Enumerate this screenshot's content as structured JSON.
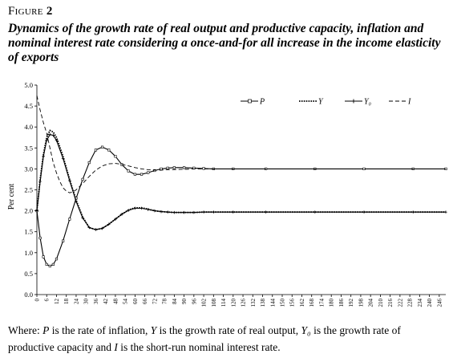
{
  "figure": {
    "label_prefix": "Figure",
    "label_number": "2",
    "title": "Dynamics of the growth rate of real output and productive capacity, inflation and nominal interest rate considering a once-and-for all increase in the income elasticity of exports"
  },
  "caption": {
    "parts": [
      {
        "text": "Where: ",
        "italic": false
      },
      {
        "text": "P",
        "italic": true
      },
      {
        "text": " is the rate of inflation, ",
        "italic": false
      },
      {
        "text": "Y",
        "italic": true
      },
      {
        "text": " is the growth rate of real output, ",
        "italic": false
      },
      {
        "text": "Y₀",
        "italic": true
      },
      {
        "text": " is the growth rate of productive capacity and ",
        "italic": false
      },
      {
        "text": "I",
        "italic": true
      },
      {
        "text": " is the short-run nominal interest rate.",
        "italic": false
      }
    ]
  },
  "chart_data": {
    "type": "line",
    "title": "",
    "xlabel": "",
    "ylabel": "Per cent",
    "xlim": [
      0,
      250
    ],
    "ylim": [
      0,
      5
    ],
    "yticks": [
      "0.0",
      "0.5",
      "1.0",
      "1.5",
      "2.0",
      "2.5",
      "3.0",
      "3.5",
      "4.0",
      "4.5",
      "5.0"
    ],
    "xticks": [
      0,
      6,
      12,
      18,
      24,
      30,
      36,
      42,
      48,
      54,
      60,
      66,
      72,
      78,
      84,
      90,
      96,
      102,
      108,
      114,
      120,
      126,
      132,
      138,
      144,
      150,
      156,
      162,
      168,
      174,
      180,
      186,
      192,
      198,
      204,
      210,
      216,
      222,
      228,
      234,
      240,
      246
    ],
    "grid": false,
    "legend_position": "top-right",
    "series": [
      {
        "name": "P",
        "style": "solid-square-markers",
        "x": [
          0,
          2,
          4,
          6,
          8,
          10,
          12,
          16,
          20,
          24,
          28,
          32,
          36,
          40,
          44,
          48,
          52,
          56,
          60,
          64,
          68,
          72,
          76,
          80,
          84,
          90,
          96,
          102,
          108,
          120,
          140,
          170,
          200,
          230,
          250
        ],
        "values": [
          2.0,
          1.35,
          0.9,
          0.72,
          0.68,
          0.72,
          0.85,
          1.28,
          1.8,
          2.3,
          2.75,
          3.15,
          3.45,
          3.52,
          3.45,
          3.3,
          3.1,
          2.95,
          2.87,
          2.87,
          2.91,
          2.96,
          3.0,
          3.02,
          3.03,
          3.03,
          3.02,
          3.01,
          3.0,
          3.0,
          3.0,
          3.0,
          3.0,
          3.0,
          3.0
        ]
      },
      {
        "name": "Y",
        "style": "dotted",
        "x": [
          0,
          2,
          4,
          6,
          8,
          10,
          12,
          16,
          20,
          24,
          28,
          32,
          36,
          40,
          44,
          48,
          52,
          56,
          60,
          64,
          68,
          72,
          76,
          80,
          84,
          90,
          96,
          102,
          108,
          120,
          140,
          170,
          200,
          230,
          250
        ],
        "values": [
          2.0,
          2.75,
          3.35,
          3.75,
          3.92,
          3.88,
          3.75,
          3.3,
          2.75,
          2.25,
          1.85,
          1.6,
          1.55,
          1.58,
          1.68,
          1.8,
          1.92,
          2.02,
          2.07,
          2.07,
          2.04,
          2.0,
          1.98,
          1.97,
          1.96,
          1.96,
          1.96,
          1.97,
          1.97,
          1.97,
          1.97,
          1.97,
          1.97,
          1.97,
          1.97
        ]
      },
      {
        "name": "Y₀",
        "style": "solid-plus-markers",
        "x": [
          0,
          2,
          4,
          6,
          8,
          10,
          12,
          16,
          20,
          24,
          28,
          32,
          36,
          40,
          44,
          48,
          52,
          56,
          60,
          64,
          68,
          72,
          76,
          80,
          84,
          90,
          96,
          102,
          108,
          120,
          140,
          170,
          200,
          230,
          250
        ],
        "values": [
          2.0,
          2.7,
          3.3,
          3.68,
          3.82,
          3.8,
          3.68,
          3.25,
          2.72,
          2.22,
          1.83,
          1.6,
          1.55,
          1.58,
          1.68,
          1.8,
          1.92,
          2.01,
          2.06,
          2.06,
          2.03,
          2.0,
          1.98,
          1.97,
          1.96,
          1.96,
          1.96,
          1.97,
          1.97,
          1.97,
          1.97,
          1.97,
          1.97,
          1.97,
          1.97
        ]
      },
      {
        "name": "I",
        "style": "dashed",
        "x": [
          0,
          2,
          4,
          6,
          8,
          10,
          12,
          14,
          16,
          18,
          20,
          22,
          24,
          28,
          32,
          36,
          40,
          44,
          48,
          52,
          56,
          60,
          64,
          68,
          72,
          76,
          80,
          90,
          100,
          120,
          140,
          170,
          200,
          230,
          250
        ],
        "values": [
          4.75,
          4.4,
          4.1,
          3.85,
          3.5,
          3.15,
          2.9,
          2.7,
          2.55,
          2.47,
          2.43,
          2.45,
          2.5,
          2.65,
          2.82,
          2.97,
          3.07,
          3.12,
          3.13,
          3.11,
          3.07,
          3.03,
          3.0,
          2.98,
          2.97,
          2.97,
          2.98,
          2.99,
          3.0,
          3.0,
          3.0,
          3.0,
          3.0,
          3.0,
          3.0
        ]
      }
    ]
  }
}
